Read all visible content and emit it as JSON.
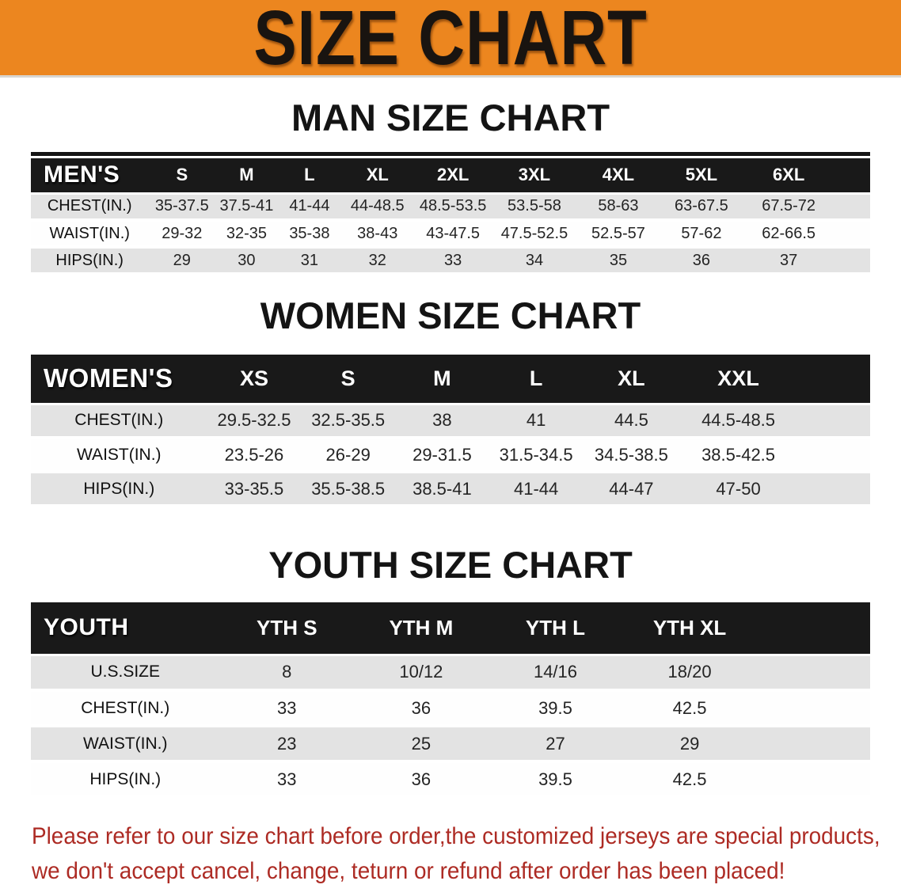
{
  "banner": {
    "title": "SIZE CHART"
  },
  "colors": {
    "banner_orange": "#EC861F",
    "table_header_black": "#191919",
    "row_gray": "#E3E3E3",
    "row_white": "#FEFEFE",
    "disclaimer_red": "#AD2B24",
    "title_text": "#191410"
  },
  "tables": {
    "men": {
      "heading": "MAN SIZE CHART",
      "corner_label": "MEN'S",
      "sizes": [
        "S",
        "M",
        "L",
        "XL",
        "2XL",
        "3XL",
        "4XL",
        "5XL",
        "6XL"
      ],
      "rows": [
        {
          "label": "CHEST(IN.)",
          "values": [
            "35-37.5",
            "37.5-41",
            "41-44",
            "44-48.5",
            "48.5-53.5",
            "53.5-58",
            "58-63",
            "63-67.5",
            "67.5-72"
          ]
        },
        {
          "label": "WAIST(IN.)",
          "values": [
            "29-32",
            "32-35",
            "35-38",
            "38-43",
            "43-47.5",
            "47.5-52.5",
            "52.5-57",
            "57-62",
            "62-66.5"
          ]
        },
        {
          "label": "HIPS(IN.)",
          "values": [
            "29",
            "30",
            "31",
            "32",
            "33",
            "34",
            "35",
            "36",
            "37"
          ]
        }
      ]
    },
    "women": {
      "heading": "WOMEN SIZE CHART",
      "corner_label": "WOMEN'S",
      "sizes": [
        "XS",
        "S",
        "M",
        "L",
        "XL",
        "XXL"
      ],
      "rows": [
        {
          "label": "CHEST(IN.)",
          "values": [
            "29.5-32.5",
            "32.5-35.5",
            "38",
            "41",
            "44.5",
            "44.5-48.5"
          ]
        },
        {
          "label": "WAIST(IN.)",
          "values": [
            "23.5-26",
            "26-29",
            "29-31.5",
            "31.5-34.5",
            "34.5-38.5",
            "38.5-42.5"
          ]
        },
        {
          "label": "HIPS(IN.)",
          "values": [
            "33-35.5",
            "35.5-38.5",
            "38.5-41",
            "41-44",
            "44-47",
            "47-50"
          ]
        }
      ]
    },
    "youth": {
      "heading": "YOUTH SIZE CHART",
      "corner_label": "YOUTH",
      "sizes": [
        "YTH S",
        "YTH M",
        "YTH L",
        "YTH XL"
      ],
      "rows": [
        {
          "label": "U.S.SIZE",
          "values": [
            "8",
            "10/12",
            "14/16",
            "18/20"
          ]
        },
        {
          "label": "CHEST(IN.)",
          "values": [
            "33",
            "36",
            "39.5",
            "42.5"
          ]
        },
        {
          "label": "WAIST(IN.)",
          "values": [
            "23",
            "25",
            "27",
            "29"
          ]
        },
        {
          "label": "HIPS(IN.)",
          "values": [
            "33",
            "36",
            "39.5",
            "42.5"
          ]
        }
      ]
    }
  },
  "disclaimer": {
    "line1": "Please refer to our size chart before order,the customized jerseys are special products,",
    "line2": "we don't accept cancel, change, teturn or refund after order has been placed!"
  }
}
